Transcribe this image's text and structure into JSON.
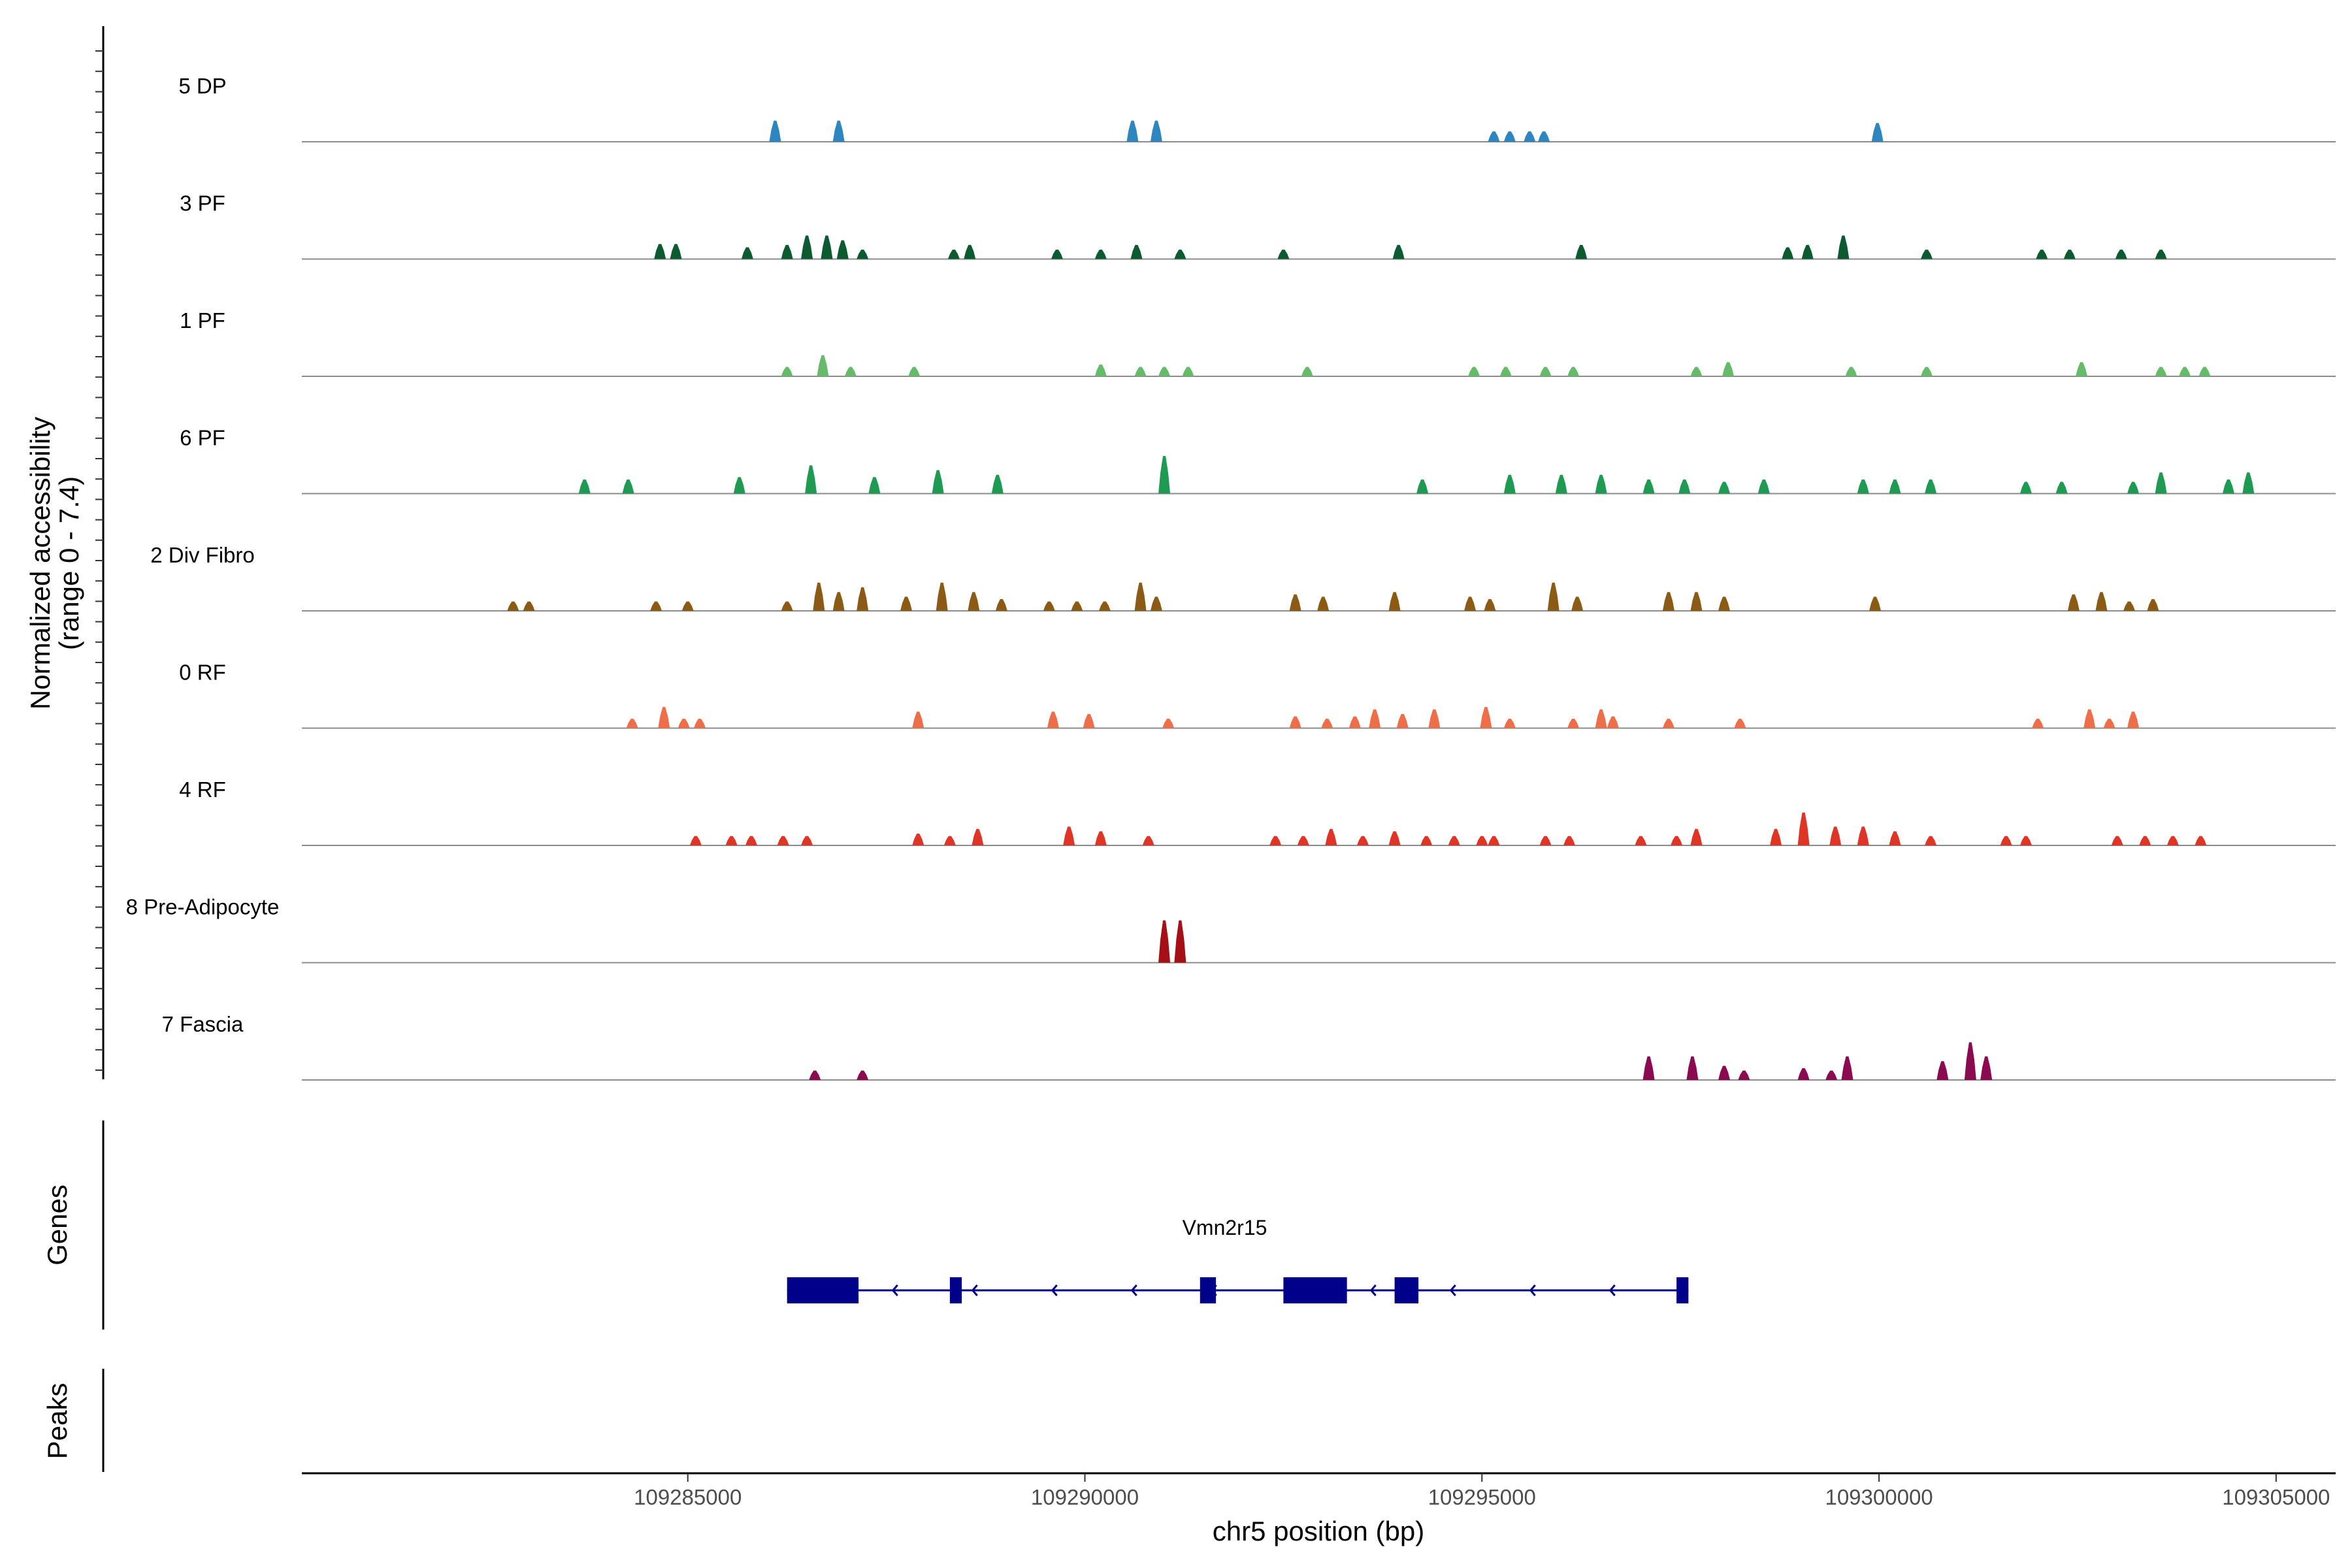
{
  "chart_data": {
    "type": "coverage",
    "yaxis_title": "Normalized accessibility",
    "yaxis_range_label": "(range 0 - 7.4)",
    "ylim": [
      0,
      7.4
    ],
    "xlabel": "chr5 position (bp)",
    "xlim": [
      109280140,
      109305750
    ],
    "xticks": [
      109285000,
      109290000,
      109295000,
      109300000,
      109305000
    ],
    "xtick_labels": [
      "109285000",
      "109290000",
      "109295000",
      "109300000",
      "109305000"
    ],
    "tracks": [
      {
        "name": "5 DP",
        "color": "#2E86C1",
        "peaks": [
          [
            109286100,
            4.5
          ],
          [
            109286900,
            4.5
          ],
          [
            109290600,
            4.5
          ],
          [
            109290900,
            4.5
          ],
          [
            109295150,
            2.2
          ],
          [
            109295350,
            2.2
          ],
          [
            109295600,
            2.2
          ],
          [
            109295780,
            2.2
          ],
          [
            109299980,
            4.0
          ]
        ]
      },
      {
        "name": "3 PF",
        "color": "#0B5A30",
        "peaks": [
          [
            109284650,
            3.2
          ],
          [
            109284850,
            3.2
          ],
          [
            109285750,
            2.5
          ],
          [
            109286250,
            3.0
          ],
          [
            109286500,
            5.0
          ],
          [
            109286750,
            5.0
          ],
          [
            109286950,
            4.0
          ],
          [
            109287200,
            2.0
          ],
          [
            109288350,
            2.0
          ],
          [
            109288550,
            3.0
          ],
          [
            109289650,
            2.0
          ],
          [
            109290200,
            2.0
          ],
          [
            109290650,
            3.0
          ],
          [
            109291200,
            2.0
          ],
          [
            109292500,
            2.0
          ],
          [
            109293950,
            3.0
          ],
          [
            109296250,
            3.0
          ],
          [
            109298850,
            2.5
          ],
          [
            109299100,
            3.0
          ],
          [
            109299550,
            5.0
          ],
          [
            109300600,
            2.0
          ],
          [
            109302050,
            2.0
          ],
          [
            109302400,
            2.0
          ],
          [
            109303050,
            2.0
          ],
          [
            109303550,
            2.0
          ]
        ]
      },
      {
        "name": "1 PF",
        "color": "#66BB6A",
        "peaks": [
          [
            109286250,
            2.0
          ],
          [
            109286700,
            4.5
          ],
          [
            109287050,
            2.0
          ],
          [
            109287850,
            2.0
          ],
          [
            109290200,
            2.5
          ],
          [
            109290700,
            2.0
          ],
          [
            109291000,
            2.0
          ],
          [
            109291300,
            2.0
          ],
          [
            109292800,
            2.0
          ],
          [
            109294900,
            2.0
          ],
          [
            109295300,
            2.0
          ],
          [
            109295800,
            2.0
          ],
          [
            109296150,
            2.0
          ],
          [
            109297700,
            2.0
          ],
          [
            109298100,
            3.0
          ],
          [
            109299650,
            2.0
          ],
          [
            109300600,
            2.0
          ],
          [
            109302550,
            3.0
          ],
          [
            109303550,
            2.0
          ],
          [
            109303850,
            2.0
          ],
          [
            109304100,
            2.0
          ]
        ]
      },
      {
        "name": "6 PF",
        "color": "#1E9A52",
        "peaks": [
          [
            109283700,
            3.0
          ],
          [
            109284250,
            3.0
          ],
          [
            109285650,
            3.5
          ],
          [
            109286550,
            6.0
          ],
          [
            109287350,
            3.5
          ],
          [
            109288150,
            5.0
          ],
          [
            109288900,
            4.0
          ],
          [
            109291000,
            8.0
          ],
          [
            109294250,
            3.0
          ],
          [
            109295350,
            4.0
          ],
          [
            109296000,
            4.0
          ],
          [
            109296500,
            4.0
          ],
          [
            109297100,
            3.0
          ],
          [
            109297550,
            3.0
          ],
          [
            109298050,
            2.5
          ],
          [
            109298550,
            3.0
          ],
          [
            109299800,
            3.0
          ],
          [
            109300200,
            3.0
          ],
          [
            109300650,
            3.0
          ],
          [
            109301850,
            2.5
          ],
          [
            109302300,
            2.5
          ],
          [
            109303200,
            2.5
          ],
          [
            109303550,
            4.5
          ],
          [
            109304400,
            3.0
          ],
          [
            109304650,
            4.5
          ]
        ]
      },
      {
        "name": "2 Div Fibro",
        "color": "#8B5A14",
        "peaks": [
          [
            109282800,
            2.0
          ],
          [
            109283000,
            2.0
          ],
          [
            109284600,
            2.0
          ],
          [
            109285000,
            2.0
          ],
          [
            109286250,
            2.0
          ],
          [
            109286650,
            6.0
          ],
          [
            109286900,
            4.0
          ],
          [
            109287200,
            5.0
          ],
          [
            109287750,
            3.0
          ],
          [
            109288200,
            6.0
          ],
          [
            109288600,
            4.0
          ],
          [
            109288950,
            2.5
          ],
          [
            109289550,
            2.0
          ],
          [
            109289900,
            2.0
          ],
          [
            109290250,
            2.0
          ],
          [
            109290700,
            6.0
          ],
          [
            109290900,
            3.0
          ],
          [
            109292650,
            3.5
          ],
          [
            109293000,
            3.0
          ],
          [
            109293900,
            4.0
          ],
          [
            109294850,
            3.0
          ],
          [
            109295100,
            2.5
          ],
          [
            109295900,
            6.0
          ],
          [
            109296200,
            3.0
          ],
          [
            109297350,
            4.0
          ],
          [
            109297700,
            4.0
          ],
          [
            109298050,
            3.0
          ],
          [
            109299950,
            3.0
          ],
          [
            109302450,
            3.5
          ],
          [
            109302800,
            4.0
          ],
          [
            109303150,
            2.0
          ],
          [
            109303450,
            2.5
          ]
        ]
      },
      {
        "name": "0 RF",
        "color": "#EE6E4A",
        "peaks": [
          [
            109284300,
            2.0
          ],
          [
            109284700,
            4.5
          ],
          [
            109284950,
            2.0
          ],
          [
            109285150,
            2.0
          ],
          [
            109287900,
            3.5
          ],
          [
            109289600,
            3.5
          ],
          [
            109290050,
            3.0
          ],
          [
            109291050,
            2.0
          ],
          [
            109292650,
            2.5
          ],
          [
            109293050,
            2.0
          ],
          [
            109293400,
            2.5
          ],
          [
            109293650,
            4.0
          ],
          [
            109294000,
            3.0
          ],
          [
            109294400,
            4.0
          ],
          [
            109295050,
            4.5
          ],
          [
            109295350,
            2.0
          ],
          [
            109296150,
            2.0
          ],
          [
            109296500,
            4.0
          ],
          [
            109296650,
            2.5
          ],
          [
            109297350,
            2.0
          ],
          [
            109298250,
            2.0
          ],
          [
            109302000,
            2.0
          ],
          [
            109302650,
            4.0
          ],
          [
            109302900,
            2.0
          ],
          [
            109303200,
            3.5
          ]
        ]
      },
      {
        "name": "4 RF",
        "color": "#DE3527",
        "peaks": [
          [
            109285100,
            2.0
          ],
          [
            109285550,
            2.0
          ],
          [
            109285800,
            2.0
          ],
          [
            109286200,
            2.0
          ],
          [
            109286500,
            2.0
          ],
          [
            109287900,
            2.5
          ],
          [
            109288300,
            2.0
          ],
          [
            109288650,
            3.5
          ],
          [
            109289800,
            4.0
          ],
          [
            109290200,
            3.0
          ],
          [
            109290800,
            2.0
          ],
          [
            109292400,
            2.0
          ],
          [
            109292750,
            2.0
          ],
          [
            109293100,
            3.5
          ],
          [
            109293500,
            2.0
          ],
          [
            109293900,
            3.0
          ],
          [
            109294300,
            2.0
          ],
          [
            109294650,
            2.0
          ],
          [
            109295000,
            2.0
          ],
          [
            109295150,
            2.0
          ],
          [
            109295800,
            2.0
          ],
          [
            109296100,
            2.0
          ],
          [
            109297000,
            2.0
          ],
          [
            109297450,
            2.0
          ],
          [
            109297700,
            3.5
          ],
          [
            109298700,
            3.5
          ],
          [
            109299050,
            7.0
          ],
          [
            109299450,
            4.0
          ],
          [
            109299800,
            4.0
          ],
          [
            109300200,
            3.0
          ],
          [
            109300650,
            2.0
          ],
          [
            109301600,
            2.0
          ],
          [
            109301850,
            2.0
          ],
          [
            109303000,
            2.0
          ],
          [
            109303350,
            2.0
          ],
          [
            109303700,
            2.0
          ],
          [
            109304050,
            2.0
          ]
        ]
      },
      {
        "name": "8 Pre-Adipocyte",
        "color": "#A50F15",
        "peaks": [
          [
            109291000,
            9.0
          ],
          [
            109291200,
            9.0
          ]
        ]
      },
      {
        "name": "7 Fascia",
        "color": "#8B0A50",
        "peaks": [
          [
            109286600,
            2.0
          ],
          [
            109287200,
            2.0
          ],
          [
            109297100,
            5.0
          ],
          [
            109297650,
            5.0
          ],
          [
            109298050,
            3.0
          ],
          [
            109298300,
            2.0
          ],
          [
            109299050,
            2.5
          ],
          [
            109299400,
            2.0
          ],
          [
            109299600,
            5.0
          ],
          [
            109300800,
            4.0
          ],
          [
            109301150,
            8.0
          ],
          [
            109301350,
            5.0
          ]
        ]
      }
    ],
    "genes_label": "Genes",
    "peaks_label": "Peaks",
    "gene": {
      "name": "Vmn2r15",
      "color": "#00008B",
      "strand": "-",
      "start": 109286250,
      "end": 109297600,
      "exons": [
        [
          109286250,
          109287150
        ],
        [
          109288300,
          109288450
        ],
        [
          109291450,
          109291650
        ],
        [
          109292500,
          109293300
        ],
        [
          109293900,
          109294200
        ],
        [
          109297450,
          109297600
        ]
      ]
    }
  }
}
